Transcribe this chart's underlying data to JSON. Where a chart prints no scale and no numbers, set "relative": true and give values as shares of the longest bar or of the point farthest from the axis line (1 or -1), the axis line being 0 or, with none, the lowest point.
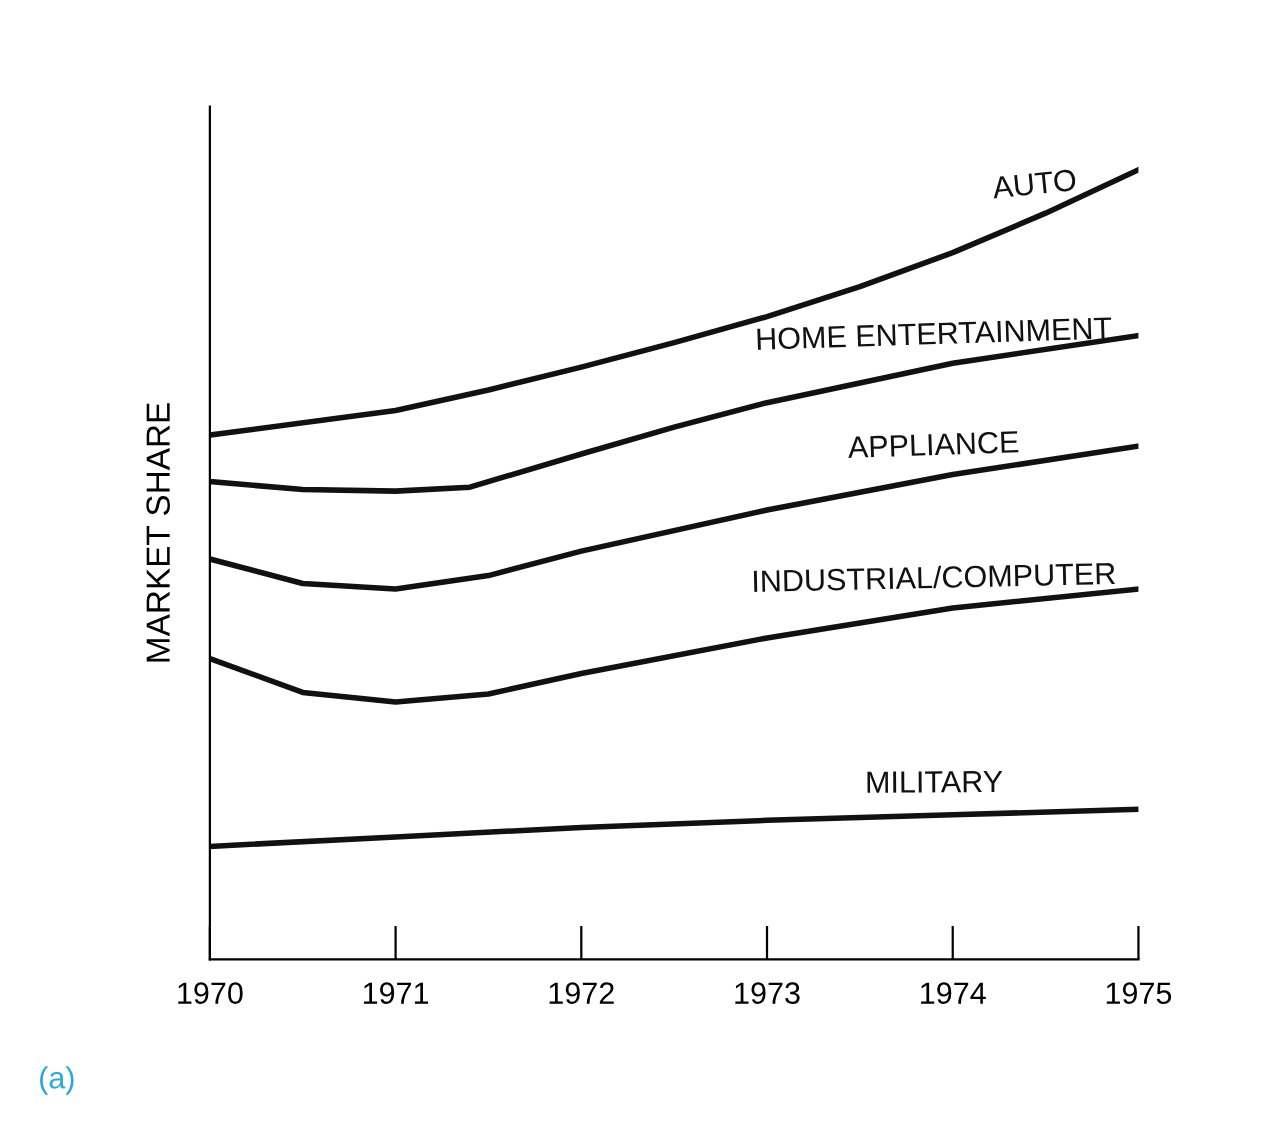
{
  "chart_data": {
    "type": "line",
    "relative": true,
    "ylabel": "MARKET SHARE",
    "xlim": [
      1970,
      1975
    ],
    "xticks": [
      1970,
      1971,
      1972,
      1973,
      1974,
      1975
    ],
    "grid": false,
    "legend": false,
    "marker": "none",
    "line_style": "solid",
    "annotations": [
      "(a)"
    ],
    "series": [
      {
        "name": "AUTO",
        "color": "#111111",
        "x": [
          1970,
          1971,
          1971.5,
          1972,
          1972.5,
          1973,
          1973.5,
          1974,
          1974.5,
          1975
        ],
        "values": [
          0.664,
          0.695,
          0.721,
          0.75,
          0.781,
          0.814,
          0.852,
          0.895,
          0.945,
          1
        ]
      },
      {
        "name": "HOME ENTERTAINMENT",
        "color": "#111111",
        "x": [
          1970,
          1970.5,
          1971,
          1971.4,
          1972,
          1972.5,
          1973,
          1974,
          1975
        ],
        "values": [
          0.605,
          0.595,
          0.593,
          0.598,
          0.64,
          0.674,
          0.705,
          0.755,
          0.79
        ]
      },
      {
        "name": "APPLIANCE",
        "color": "#111111",
        "x": [
          1970,
          1970.5,
          1971,
          1971.5,
          1972,
          1973,
          1974,
          1975
        ],
        "values": [
          0.507,
          0.476,
          0.469,
          0.486,
          0.517,
          0.569,
          0.614,
          0.65
        ]
      },
      {
        "name": "INDUSTRIAL/COMPUTER",
        "color": "#111111",
        "x": [
          1970,
          1970.5,
          1971,
          1971.5,
          1972,
          1973,
          1974,
          1975
        ],
        "values": [
          0.381,
          0.338,
          0.326,
          0.336,
          0.362,
          0.407,
          0.445,
          0.469
        ]
      },
      {
        "name": "MILITARY",
        "color": "#111111",
        "x": [
          1970,
          1971,
          1972,
          1973,
          1974,
          1975
        ],
        "values": [
          0.143,
          0.155,
          0.167,
          0.176,
          0.183,
          0.19
        ]
      }
    ]
  }
}
